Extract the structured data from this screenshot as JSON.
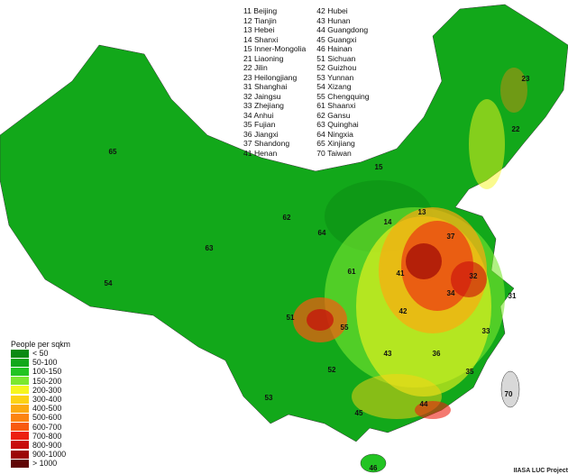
{
  "legend": {
    "title": "People per sqkm",
    "classes": [
      {
        "label": "< 50",
        "color": "#0a8a12"
      },
      {
        "label": "50-100",
        "color": "#12a81a"
      },
      {
        "label": "100-150",
        "color": "#22c422"
      },
      {
        "label": "150-200",
        "color": "#7ce830"
      },
      {
        "label": "200-300",
        "color": "#f6f61e"
      },
      {
        "label": "300-400",
        "color": "#fcd214"
      },
      {
        "label": "400-500",
        "color": "#fcaa10"
      },
      {
        "label": "500-600",
        "color": "#fc8410"
      },
      {
        "label": "600-700",
        "color": "#f85a10"
      },
      {
        "label": "700-800",
        "color": "#ec2010"
      },
      {
        "label": "800-900",
        "color": "#c80c0c"
      },
      {
        "label": "900-1000",
        "color": "#9c0606"
      },
      {
        "label": "> 1000",
        "color": "#600404"
      }
    ]
  },
  "province_list": {
    "col1": [
      "11 Beijing",
      "12 Tianjin",
      "13 Hebei",
      "14 Shanxi",
      "15 Inner-Mongolia",
      "21 Liaoning",
      "22 Jilin",
      "23 Heilongjiang",
      "31 Shanghai",
      "32 Jaingsu",
      "33 Zhejiang",
      "34 Anhui",
      "35 Fujian",
      "36 Jiangxi",
      "37 Shandong",
      "41 Henan"
    ],
    "col2": [
      "42 Hubei",
      "43 Hunan",
      "44 Guangdong",
      "45 Guangxi",
      "46 Hainan",
      "51 Sichuan",
      "52 Guizhou",
      "53 Yunnan",
      "54 Xizang",
      "55 Chengquing",
      "61 Shaanxi",
      "62 Gansu",
      "63 Quinghai",
      "64 Ningxia",
      "65 Xinjiang",
      "70 Taiwan"
    ]
  },
  "map_labels": [
    "23",
    "22",
    "15",
    "65",
    "63",
    "54",
    "62",
    "64",
    "14",
    "13",
    "37",
    "61",
    "41",
    "32",
    "31",
    "34",
    "42",
    "51",
    "55",
    "33",
    "43",
    "36",
    "52",
    "35",
    "53",
    "44",
    "45",
    "46",
    "70"
  ],
  "credit": "IIASA LUC Project"
}
